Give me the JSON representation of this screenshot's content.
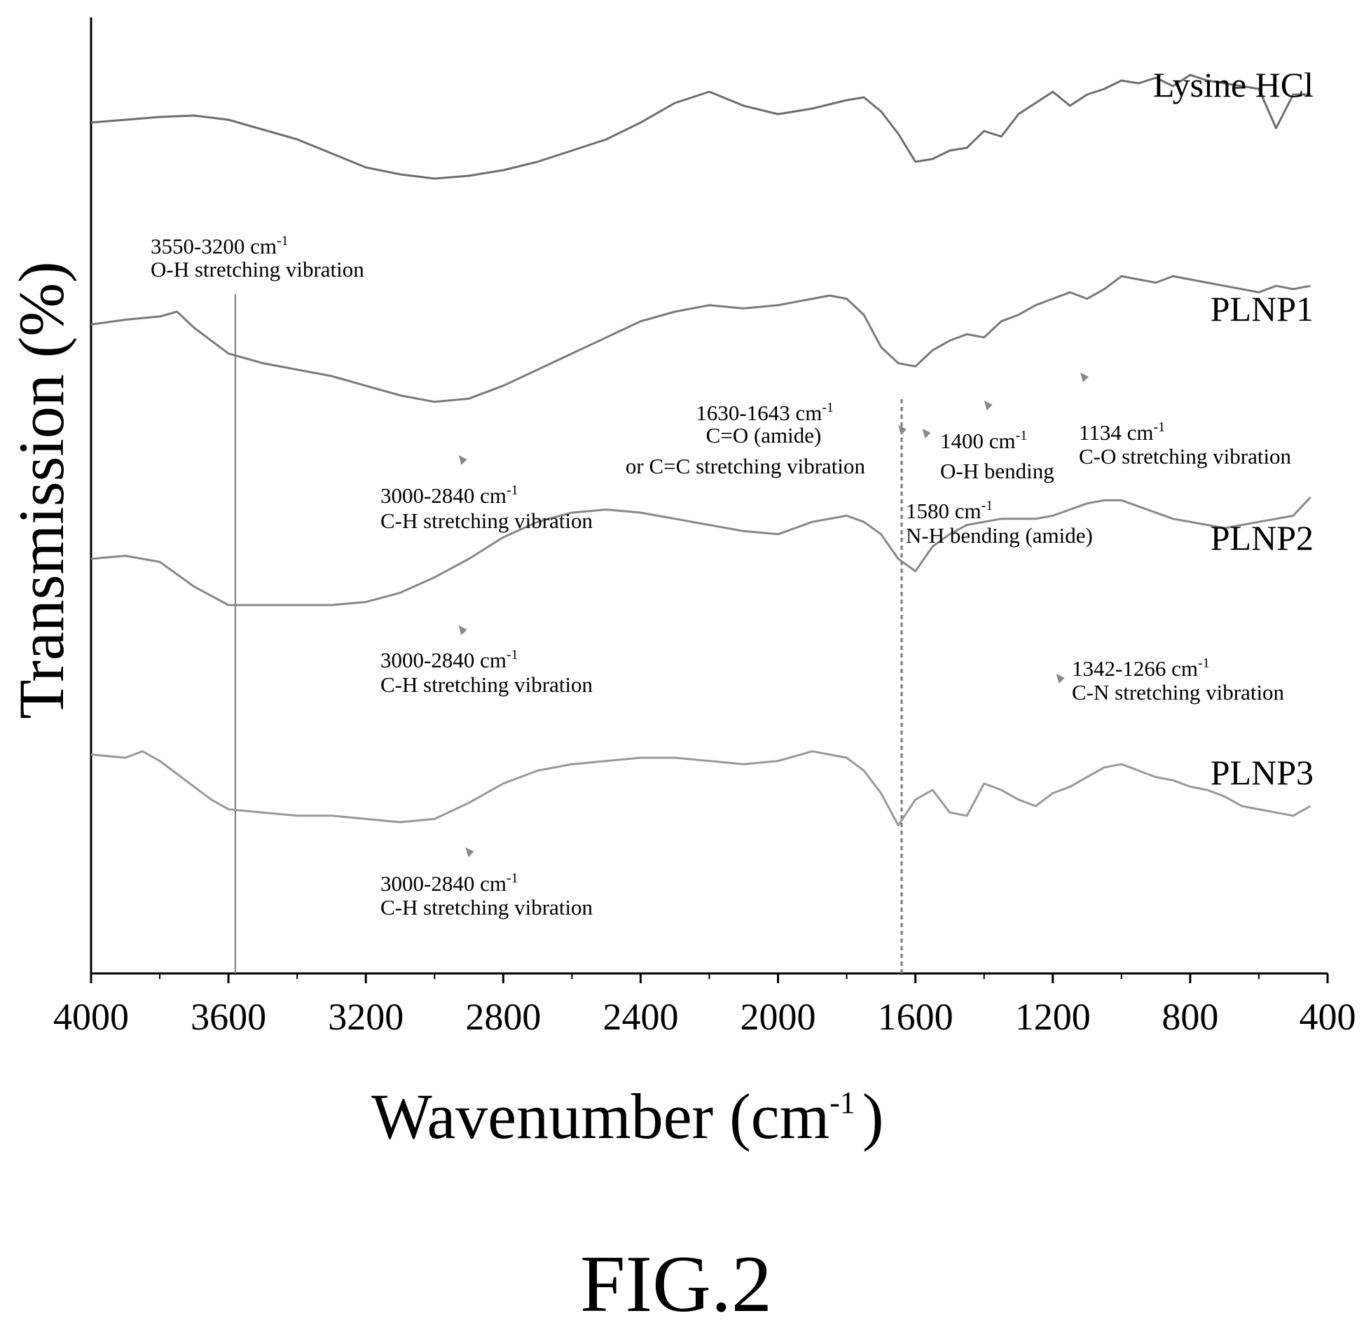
{
  "figure_label": "FIG.2",
  "chart_data": {
    "type": "line",
    "xlabel": "Wavenumber (cm",
    "xlabel_sup": "-1",
    "xlabel_close": ")",
    "ylabel": "Transmission (%)",
    "xlim": [
      4000,
      400
    ],
    "x_reversed": true,
    "x_ticks": [
      "4000",
      "3600",
      "3200",
      "2800",
      "2400",
      "2000",
      "1600",
      "1200",
      "800",
      "400"
    ],
    "grid": false,
    "legend": "none",
    "series": [
      {
        "name": "Lysine HCl",
        "color": "#6e6e6e",
        "x": [
          4000,
          3900,
          3800,
          3700,
          3600,
          3500,
          3400,
          3300,
          3200,
          3100,
          3000,
          2900,
          2800,
          2700,
          2600,
          2500,
          2400,
          2300,
          2200,
          2100,
          2000,
          1900,
          1800,
          1750,
          1700,
          1650,
          1600,
          1550,
          1500,
          1450,
          1400,
          1350,
          1300,
          1250,
          1200,
          1150,
          1100,
          1050,
          1000,
          950,
          900,
          850,
          800,
          750,
          700,
          650,
          600,
          550,
          500,
          450
        ],
        "y": [
          60,
          58,
          56,
          55,
          58,
          65,
          72,
          82,
          92,
          97,
          100,
          98,
          94,
          88,
          80,
          72,
          60,
          46,
          38,
          48,
          54,
          50,
          44,
          42,
          52,
          68,
          88,
          86,
          80,
          78,
          66,
          70,
          54,
          46,
          38,
          48,
          40,
          36,
          30,
          32,
          28,
          34,
          26,
          30,
          32,
          34,
          36,
          64,
          40,
          40
        ]
      },
      {
        "name": "PLNP1",
        "color": "#7a7a7a",
        "x": [
          4000,
          3900,
          3800,
          3750,
          3700,
          3650,
          3600,
          3500,
          3400,
          3300,
          3200,
          3100,
          3000,
          2900,
          2800,
          2700,
          2600,
          2500,
          2400,
          2300,
          2200,
          2100,
          2000,
          1900,
          1850,
          1800,
          1750,
          1700,
          1650,
          1600,
          1550,
          1500,
          1450,
          1400,
          1350,
          1300,
          1250,
          1200,
          1150,
          1100,
          1050,
          1000,
          950,
          900,
          850,
          800,
          750,
          700,
          650,
          600,
          550,
          500,
          450
        ],
        "y": [
          58,
          55,
          53,
          50,
          60,
          68,
          76,
          82,
          86,
          90,
          96,
          102,
          106,
          104,
          96,
          86,
          76,
          66,
          56,
          50,
          46,
          48,
          46,
          42,
          40,
          42,
          52,
          72,
          82,
          84,
          74,
          68,
          64,
          66,
          56,
          52,
          46,
          42,
          38,
          42,
          36,
          28,
          30,
          32,
          28,
          30,
          32,
          34,
          36,
          38,
          34,
          36,
          34
        ]
      },
      {
        "name": "PLNP2",
        "color": "#888888",
        "x": [
          4000,
          3900,
          3800,
          3700,
          3600,
          3500,
          3400,
          3300,
          3200,
          3100,
          3000,
          2900,
          2800,
          2700,
          2600,
          2500,
          2400,
          2300,
          2200,
          2100,
          2000,
          1900,
          1800,
          1750,
          1700,
          1650,
          1600,
          1550,
          1500,
          1450,
          1400,
          1350,
          1300,
          1250,
          1200,
          1150,
          1100,
          1050,
          1000,
          950,
          900,
          850,
          800,
          750,
          700,
          650,
          600,
          550,
          500,
          450
        ],
        "y": [
          40,
          38,
          42,
          58,
          70,
          70,
          70,
          70,
          68,
          62,
          52,
          40,
          26,
          16,
          10,
          8,
          10,
          14,
          18,
          22,
          24,
          16,
          12,
          16,
          24,
          40,
          48,
          32,
          24,
          18,
          16,
          14,
          14,
          14,
          12,
          8,
          4,
          2,
          2,
          6,
          10,
          14,
          16,
          18,
          20,
          18,
          16,
          14,
          12,
          0
        ]
      },
      {
        "name": "PLNP3",
        "color": "#999999",
        "x": [
          4000,
          3900,
          3850,
          3800,
          3750,
          3700,
          3650,
          3600,
          3500,
          3400,
          3300,
          3200,
          3100,
          3000,
          2900,
          2800,
          2700,
          2600,
          2500,
          2400,
          2300,
          2200,
          2100,
          2000,
          1900,
          1800,
          1750,
          1700,
          1650,
          1600,
          1550,
          1500,
          1450,
          1400,
          1350,
          1300,
          1250,
          1200,
          1150,
          1100,
          1050,
          1000,
          950,
          900,
          850,
          800,
          750,
          700,
          650,
          600,
          550,
          500,
          450
        ],
        "y": [
          38,
          40,
          36,
          42,
          50,
          58,
          66,
          72,
          74,
          76,
          76,
          78,
          80,
          78,
          68,
          56,
          48,
          44,
          42,
          40,
          40,
          42,
          44,
          42,
          36,
          40,
          48,
          62,
          82,
          66,
          60,
          74,
          76,
          56,
          60,
          66,
          70,
          62,
          58,
          52,
          46,
          44,
          48,
          52,
          54,
          58,
          60,
          64,
          70,
          72,
          74,
          76,
          70
        ]
      }
    ],
    "annotations": [
      {
        "line1": "3550-3200 cm",
        "sup": "-1",
        "line2": "O-H stretching vibration"
      },
      {
        "line1": "1630-1643 cm",
        "sup": "-1",
        "line2": "C=O (amide)",
        "line3": "or C=C stretching vibration"
      },
      {
        "line1": "1400 cm",
        "sup": "-1",
        "line2": "O-H bending"
      },
      {
        "line1": "1134 cm",
        "sup": "-1",
        "line2": "C-O stretching vibration"
      },
      {
        "line1": "3000-2840 cm",
        "sup": "-1",
        "line2": "C-H stretching vibration"
      },
      {
        "line1": "1580 cm",
        "sup": "-1",
        "line2": "N-H bending (amide)"
      },
      {
        "line1": "3000-2840 cm",
        "sup": "-1",
        "line2": "C-H stretching vibration"
      },
      {
        "line1": "1342-1266 cm",
        "sup": "-1",
        "line2": "C-N stretching vibration"
      },
      {
        "line1": "3000-2840 cm",
        "sup": "-1",
        "line2": "C-H stretching vibration"
      }
    ],
    "reference_lines_x": [
      3580,
      1640
    ]
  }
}
